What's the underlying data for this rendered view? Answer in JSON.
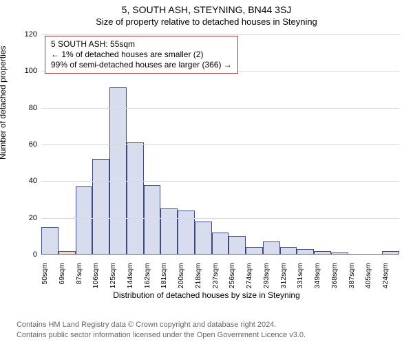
{
  "title": "5, SOUTH ASH, STEYNING, BN44 3SJ",
  "subtitle": "Size of property relative to detached houses in Steyning",
  "ylabel": "Number of detached properties",
  "xlabel": "Distribution of detached houses by size in Steyning",
  "info_line1": "5 SOUTH ASH: 55sqm",
  "info_line2": "← 1% of detached houses are smaller (2)",
  "info_line3": "99% of semi-detached houses are larger (366) →",
  "footer_line1": "Contains HM Land Registry data © Crown copyright and database right 2024.",
  "footer_line2": "Contains public sector information licensed under the Open Government Licence v3.0.",
  "chart": {
    "type": "histogram",
    "ylim": [
      0,
      120
    ],
    "yticks": [
      0,
      20,
      40,
      60,
      80,
      100,
      120
    ],
    "xticks": [
      "50sqm",
      "69sqm",
      "87sqm",
      "106sqm",
      "125sqm",
      "144sqm",
      "162sqm",
      "181sqm",
      "200sqm",
      "218sqm",
      "237sqm",
      "256sqm",
      "274sqm",
      "293sqm",
      "312sqm",
      "331sqm",
      "349sqm",
      "368sqm",
      "387sqm",
      "405sqm",
      "424sqm"
    ],
    "values": [
      15,
      2,
      37,
      52,
      91,
      61,
      38,
      25,
      24,
      18,
      12,
      10,
      4,
      7,
      4,
      3,
      2,
      1,
      0,
      0,
      2
    ],
    "highlight_index": 1,
    "bar_fill": "#d7dcee",
    "bar_border": "#3b4a7a",
    "highlight_fill": "#eed7d7",
    "highlight_border": "#a03b3b",
    "grid_color": "#d9d9d9",
    "info_border": "#a03b3b",
    "plot_background": "#ffffff",
    "bar_width_ratio": 1.0
  }
}
